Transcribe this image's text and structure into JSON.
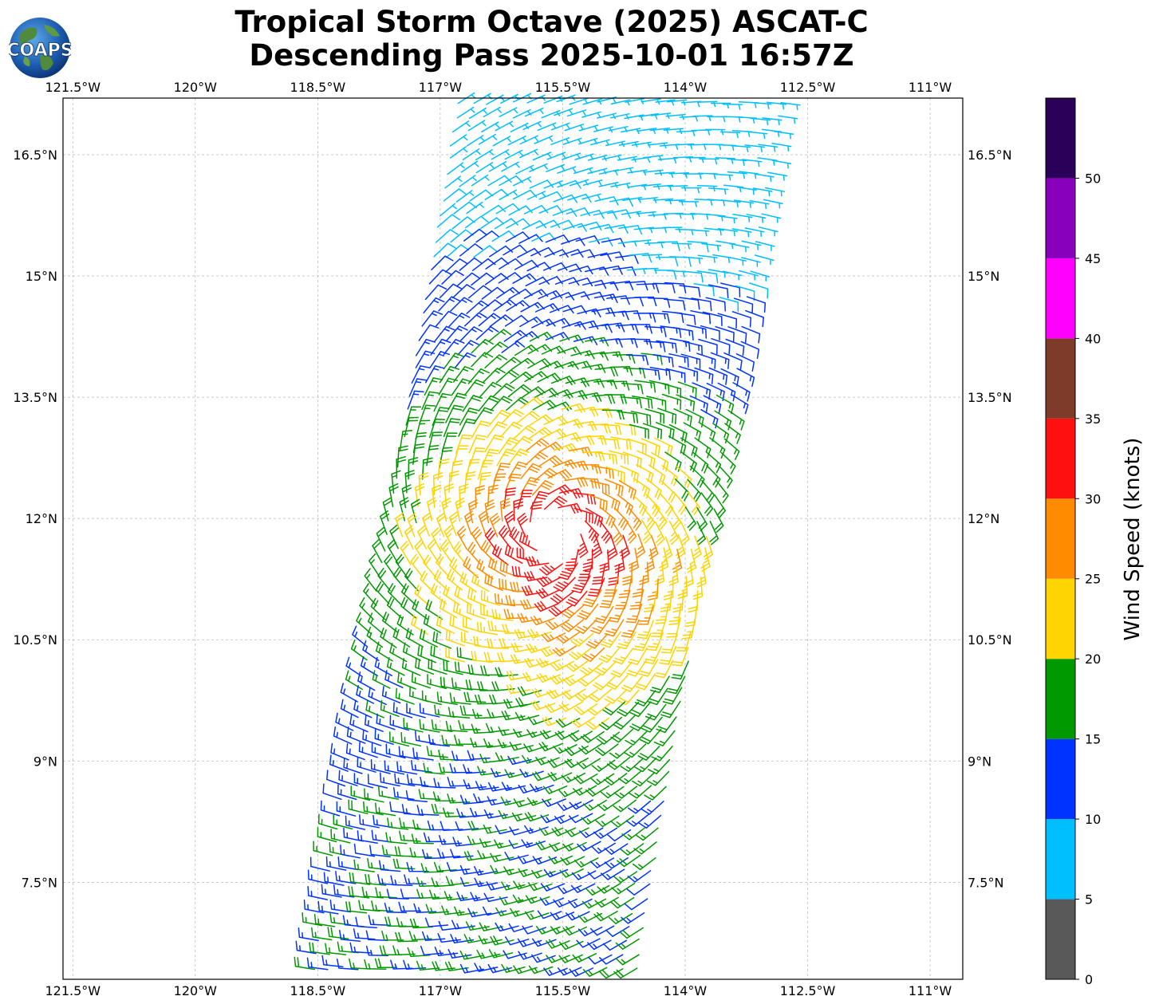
{
  "title_line1": "Tropical Storm Octave (2025) ASCAT-C",
  "title_line2": "Descending Pass 2025-10-01 16:57Z",
  "logo_text": "COAPS",
  "map": {
    "lon_range": [
      -121.62,
      -110.6
    ],
    "lat_range": [
      6.3,
      17.2
    ],
    "lon_ticks": [
      {
        "value": -121.5,
        "label": "121.5°W"
      },
      {
        "value": -120,
        "label": "120°W"
      },
      {
        "value": -118.5,
        "label": "118.5°W"
      },
      {
        "value": -117,
        "label": "117°W"
      },
      {
        "value": -115.5,
        "label": "115.5°W"
      },
      {
        "value": -114,
        "label": "114°W"
      },
      {
        "value": -112.5,
        "label": "112.5°W"
      },
      {
        "value": -111,
        "label": "111°W"
      }
    ],
    "lat_ticks": [
      {
        "value": 16.5,
        "label": "16.5°N"
      },
      {
        "value": 15,
        "label": "15°N"
      },
      {
        "value": 13.5,
        "label": "13.5°N"
      },
      {
        "value": 12,
        "label": "12°N"
      },
      {
        "value": 10.5,
        "label": "10.5°N"
      },
      {
        "value": 9,
        "label": "9°N"
      },
      {
        "value": 7.5,
        "label": "7.5°N"
      }
    ],
    "gridlines": true,
    "storm_center": {
      "lon": -115.6,
      "lat": 11.8
    }
  },
  "colorbar": {
    "title": "Wind Speed (knots)",
    "bins": [
      {
        "from": 0,
        "to": 5,
        "color": "#595959"
      },
      {
        "from": 5,
        "to": 10,
        "color": "#00bfff"
      },
      {
        "from": 10,
        "to": 15,
        "color": "#0033ff"
      },
      {
        "from": 15,
        "to": 20,
        "color": "#009900"
      },
      {
        "from": 20,
        "to": 25,
        "color": "#ffd400"
      },
      {
        "from": 25,
        "to": 30,
        "color": "#ff8c00"
      },
      {
        "from": 30,
        "to": 35,
        "color": "#ff1010"
      },
      {
        "from": 35,
        "to": 40,
        "color": "#7f3b2a"
      },
      {
        "from": 40,
        "to": 45,
        "color": "#ff00ff"
      },
      {
        "from": 45,
        "to": 50,
        "color": "#8800bb"
      },
      {
        "from": 50,
        "to": 55,
        "color": "#2b0059"
      }
    ],
    "tick_labels": [
      "0",
      "5",
      "10",
      "15",
      "20",
      "25",
      "30",
      "35",
      "40",
      "45",
      "50"
    ]
  },
  "swath": {
    "left_edge": [
      [
        -116.8,
        17.2
      ],
      [
        -118.6,
        6.3
      ]
    ],
    "right_edge": [
      [
        -112.7,
        17.2
      ],
      [
        -114.5,
        6.3
      ]
    ]
  }
}
